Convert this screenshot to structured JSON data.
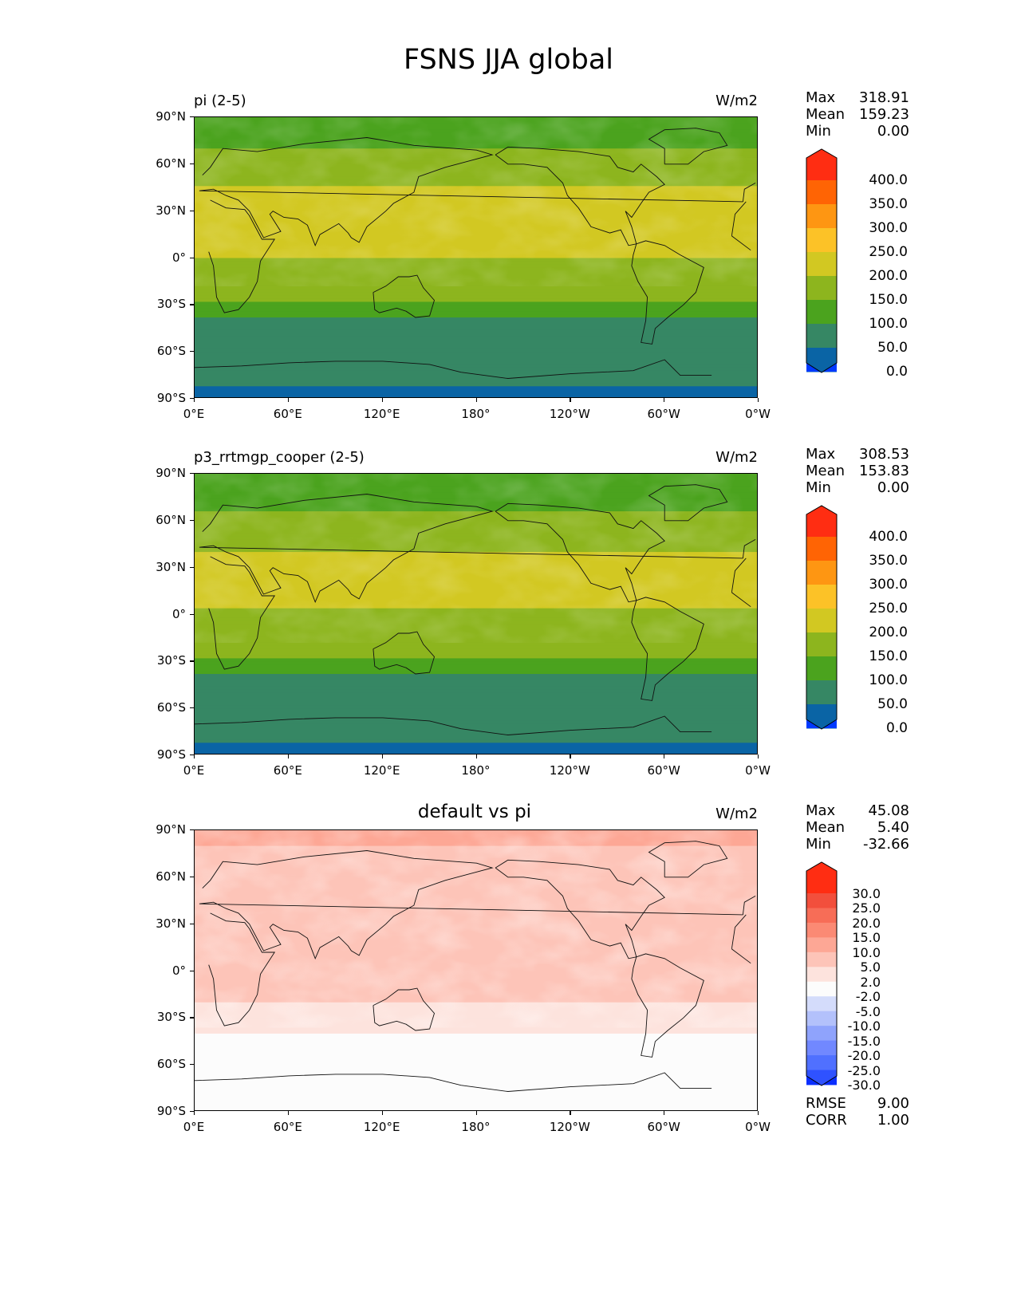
{
  "title": "FSNS JJA global",
  "lat_ticks": [
    "90°N",
    "60°N",
    "30°N",
    "0°",
    "30°S",
    "60°S",
    "90°S"
  ],
  "lon_ticks": [
    "0°E",
    "60°E",
    "120°E",
    "180°",
    "120°W",
    "60°W",
    "0°W"
  ],
  "colors": {
    "model": [
      "#0039ff",
      "#0a64a5",
      "#368764",
      "#4ba31e",
      "#8db51e",
      "#d2c822",
      "#fcc227",
      "#fe9612",
      "#ff6404",
      "#ff2d12"
    ],
    "diff": [
      "#0a2eff",
      "#2f52ff",
      "#5070ff",
      "#7188ff",
      "#8fa3fc",
      "#b3c1fb",
      "#d4dcfb",
      "#fcfcfc",
      "#fde3dd",
      "#fdc4b8",
      "#fda795",
      "#fb8a74",
      "#f76d57",
      "#f24f3c",
      "#ff2d12"
    ]
  },
  "chart_data": [
    {
      "type": "heatmap",
      "name": "pi-panel",
      "title": "pi (2-5)",
      "units": "W/m2",
      "stats": {
        "max": "318.91",
        "mean": "159.23",
        "min": "0.00"
      },
      "colorbar": {
        "levels": [
          "400.0",
          "350.0",
          "300.0",
          "250.0",
          "200.0",
          "150.0",
          "100.0",
          "50.0",
          "0.0"
        ],
        "extend": "both"
      },
      "xlim": [
        0,
        360
      ],
      "ylim": [
        -90,
        90
      ],
      "zonal_profile": [
        [
          90,
          110
        ],
        [
          75,
          140
        ],
        [
          60,
          170
        ],
        [
          45,
          200
        ],
        [
          30,
          235
        ],
        [
          15,
          225
        ],
        [
          0,
          200
        ],
        [
          -15,
          190
        ],
        [
          -25,
          165
        ],
        [
          -32,
          135
        ],
        [
          -40,
          90
        ],
        [
          -55,
          60
        ],
        [
          -70,
          60
        ],
        [
          -80,
          60
        ],
        [
          -90,
          20
        ]
      ]
    },
    {
      "type": "heatmap",
      "name": "cooper-panel",
      "title": "p3_rrtmgp_cooper (2-5)",
      "units": "W/m2",
      "stats": {
        "max": "308.53",
        "mean": "153.83",
        "min": "0.00"
      },
      "colorbar": {
        "levels": [
          "400.0",
          "350.0",
          "300.0",
          "250.0",
          "200.0",
          "150.0",
          "100.0",
          "50.0",
          "0.0"
        ],
        "extend": "both"
      },
      "xlim": [
        0,
        360
      ],
      "ylim": [
        -90,
        90
      ],
      "zonal_profile": [
        [
          90,
          105
        ],
        [
          75,
          135
        ],
        [
          60,
          160
        ],
        [
          45,
          190
        ],
        [
          30,
          225
        ],
        [
          15,
          215
        ],
        [
          0,
          195
        ],
        [
          -15,
          185
        ],
        [
          -25,
          160
        ],
        [
          -32,
          130
        ],
        [
          -40,
          90
        ],
        [
          -55,
          60
        ],
        [
          -70,
          60
        ],
        [
          -80,
          60
        ],
        [
          -90,
          20
        ]
      ]
    },
    {
      "type": "heatmap",
      "name": "diff-panel",
      "title": "default vs pi",
      "units": "W/m2",
      "stats": {
        "max": "45.08",
        "mean": "5.40",
        "min": "-32.66",
        "rmse": "9.00",
        "corr": "1.00"
      },
      "colorbar": {
        "levels": [
          "30.0",
          "25.0",
          "20.0",
          "15.0",
          "10.0",
          "5.0",
          "2.0",
          "-2.0",
          "-5.0",
          "-10.0",
          "-15.0",
          "-20.0",
          "-25.0",
          "-30.0"
        ],
        "extend": "both"
      },
      "xlim": [
        0,
        360
      ],
      "ylim": [
        -90,
        90
      ],
      "zonal_profile": [
        [
          90,
          12
        ],
        [
          75,
          9
        ],
        [
          60,
          7
        ],
        [
          45,
          9
        ],
        [
          30,
          10
        ],
        [
          15,
          6
        ],
        [
          0,
          5
        ],
        [
          -15,
          6
        ],
        [
          -25,
          4
        ],
        [
          -35,
          3
        ],
        [
          -45,
          1
        ],
        [
          -60,
          0
        ],
        [
          -90,
          0
        ]
      ]
    }
  ]
}
